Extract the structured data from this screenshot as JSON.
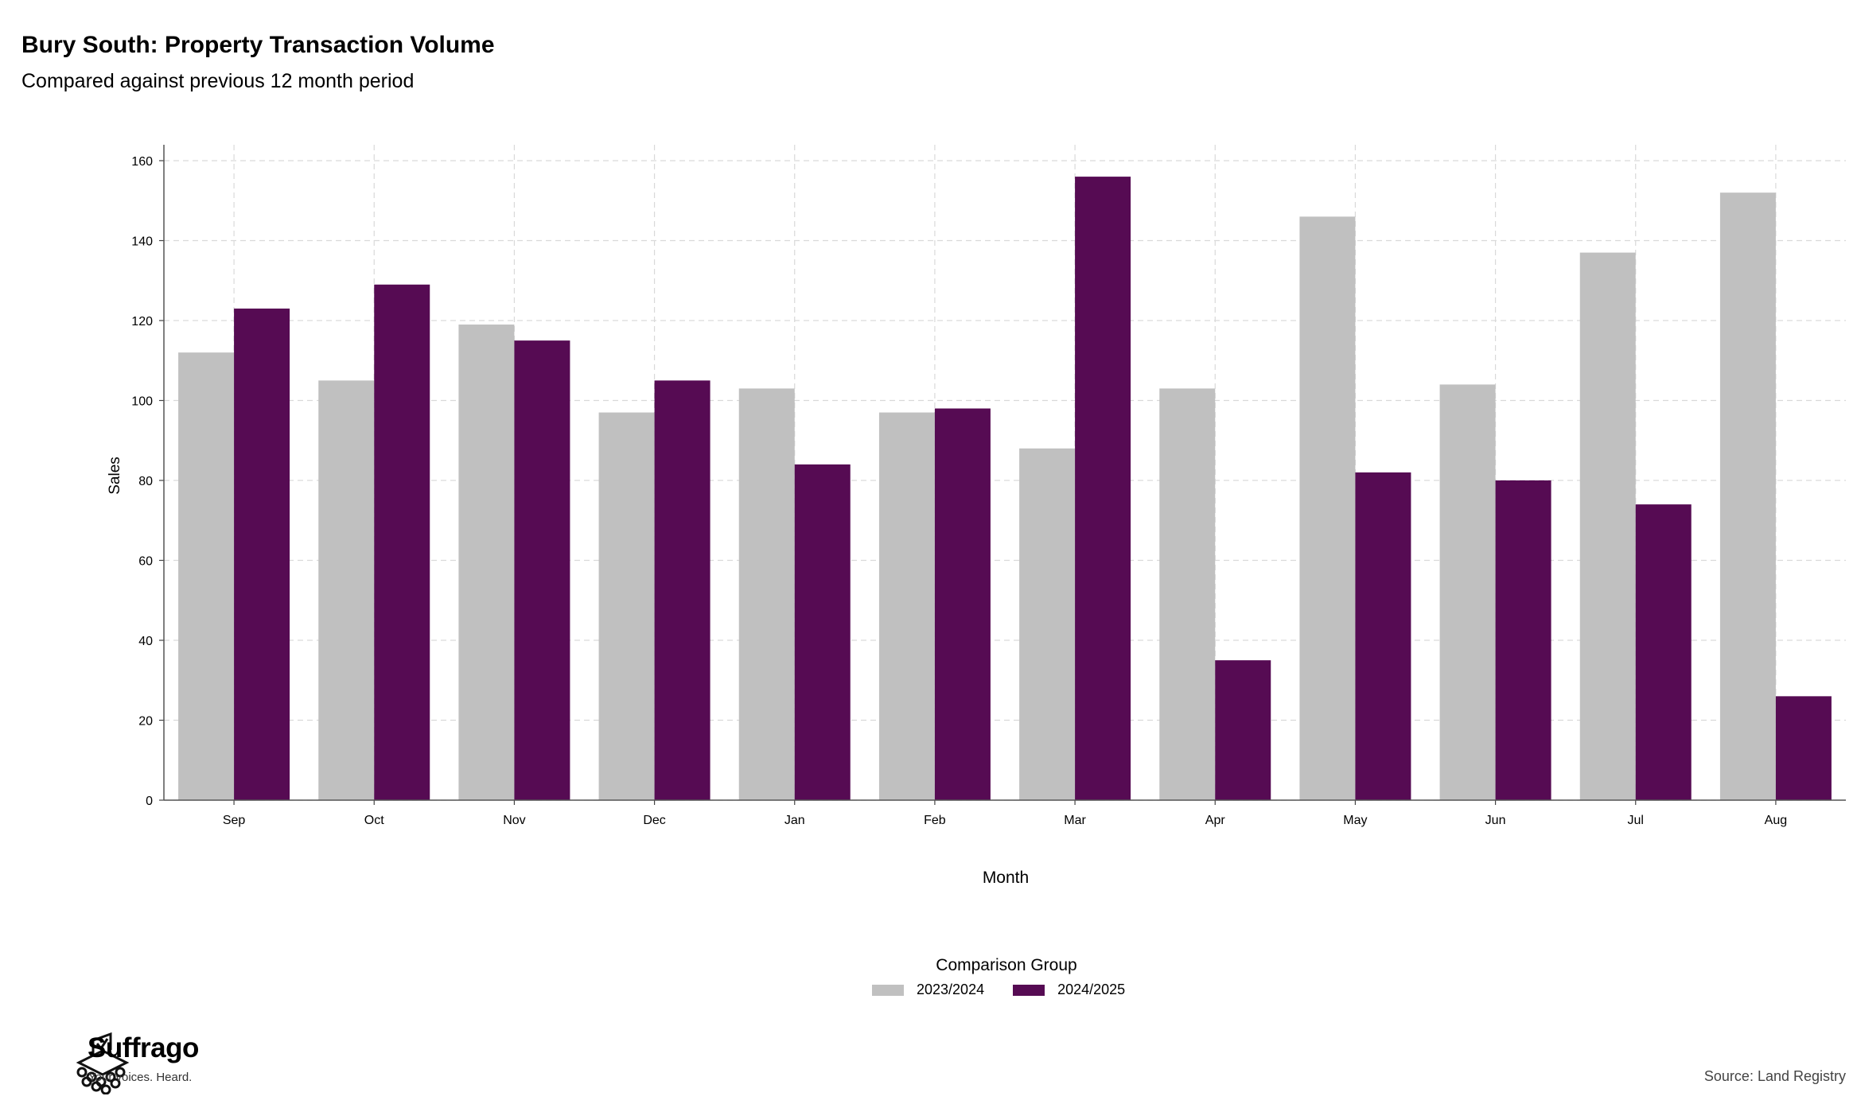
{
  "header": {
    "title": "Bury South: Property Transaction Volume",
    "subtitle": "Compared against previous 12 month period"
  },
  "legend": {
    "title": "Comparison Group"
  },
  "footer": {
    "brand": "Suffrago",
    "tagline": "Your voices. Heard.",
    "source": "Source: Land Registry"
  },
  "colors": {
    "series_2023_2024": "#c0c0c0",
    "series_2024_2025": "#560b53"
  },
  "chart_data": {
    "type": "bar",
    "title": "Bury South: Property Transaction Volume",
    "subtitle": "Compared against previous 12 month period",
    "xlabel": "Month",
    "ylabel": "Sales",
    "ylim": [
      0,
      160
    ],
    "yticks": [
      0,
      20,
      40,
      60,
      80,
      100,
      120,
      140,
      160
    ],
    "grid": true,
    "legend_position": "bottom",
    "categories": [
      "Sep",
      "Oct",
      "Nov",
      "Dec",
      "Jan",
      "Feb",
      "Mar",
      "Apr",
      "May",
      "Jun",
      "Jul",
      "Aug"
    ],
    "series": [
      {
        "name": "2023/2024",
        "color": "#c0c0c0",
        "values": [
          112,
          105,
          119,
          97,
          103,
          97,
          88,
          103,
          146,
          104,
          137,
          152
        ]
      },
      {
        "name": "2024/2025",
        "color": "#560b53",
        "values": [
          123,
          129,
          115,
          105,
          84,
          98,
          156,
          35,
          82,
          80,
          74,
          26
        ]
      }
    ]
  }
}
